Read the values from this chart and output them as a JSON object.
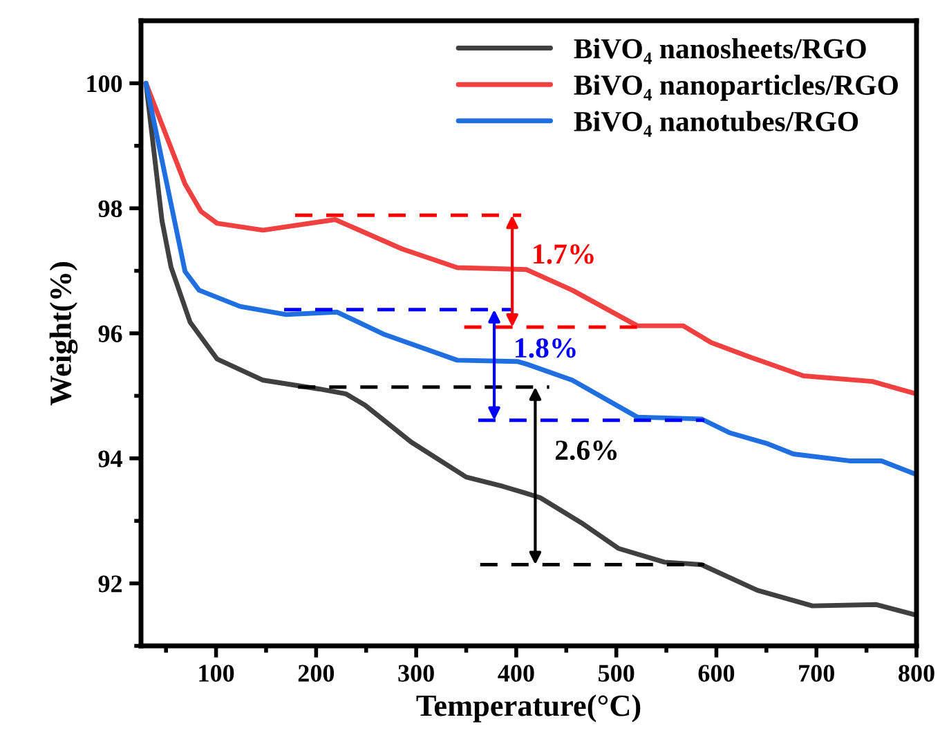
{
  "chart_data": {
    "type": "line",
    "xlabel": "Temperature(°C)",
    "ylabel": "Weight(%)",
    "xlim": [
      25,
      800
    ],
    "ylim": [
      91,
      101
    ],
    "xticks": [
      {
        "value": 50,
        "label": null
      },
      100,
      {
        "value": 150,
        "label": null
      },
      200,
      {
        "value": 250,
        "label": null
      },
      300,
      {
        "value": 350,
        "label": null
      },
      400,
      {
        "value": 450,
        "label": null
      },
      500,
      {
        "value": 550,
        "label": null
      },
      600,
      {
        "value": 650,
        "label": null
      },
      700,
      {
        "value": 750,
        "label": null
      },
      800
    ],
    "yticks": [
      {
        "value": 91,
        "label": null
      },
      92,
      {
        "value": 93,
        "label": null
      },
      94,
      {
        "value": 95,
        "label": null
      },
      96,
      {
        "value": 97,
        "label": null
      },
      98,
      {
        "value": 99,
        "label": null
      },
      100
    ],
    "grid": false,
    "legend": "top right",
    "line_style": "solid",
    "marker": "none",
    "series": [
      {
        "name": "BiVO₄ nanosheets/RGO",
        "color": "#404040",
        "x": [
          30,
          46,
          55,
          74,
          101,
          147,
          203,
          230,
          249,
          295,
          350,
          387,
          410,
          424,
          465,
          502,
          548,
          585,
          641,
          696,
          760,
          800
        ],
        "values": [
          100,
          97.8,
          97.06,
          96.18,
          95.59,
          95.25,
          95.11,
          95.03,
          94.85,
          94.26,
          93.7,
          93.55,
          93.44,
          93.37,
          92.97,
          92.56,
          92.34,
          92.3,
          91.89,
          91.64,
          91.66,
          91.49
        ]
      },
      {
        "name": "BiVO₄ nanoparticles/RGO",
        "color": "#f04040",
        "x": [
          30,
          69,
          85,
          101,
          147,
          219,
          286,
          341,
          410,
          456,
          521,
          567,
          595,
          632,
          687,
          756,
          800
        ],
        "values": [
          100,
          98.39,
          97.95,
          97.76,
          97.65,
          97.82,
          97.35,
          97.05,
          97.02,
          96.69,
          96.12,
          96.12,
          95.85,
          95.63,
          95.32,
          95.23,
          95.03
        ]
      },
      {
        "name": "BiVO₄ nanotubes/RGO",
        "color": "#1f6fe0",
        "x": [
          30,
          69,
          83,
          124,
          170,
          221,
          267,
          341,
          401,
          410,
          456,
          521,
          585,
          613,
          650,
          677,
          733,
          765,
          800
        ],
        "values": [
          100,
          96.99,
          96.69,
          96.43,
          96.3,
          96.34,
          95.99,
          95.57,
          95.55,
          95.51,
          95.25,
          94.66,
          94.63,
          94.41,
          94.24,
          94.07,
          93.96,
          93.96,
          93.74
        ]
      },
      {
        "color": "#ff0000",
        "line_style": "dashed",
        "x": [
          179,
          405
        ],
        "values": [
          97.89,
          97.89
        ]
      },
      {
        "color": "#ff0000",
        "line_style": "dashed",
        "x": [
          348,
          525
        ],
        "values": [
          96.1,
          96.1
        ]
      },
      {
        "color": "#0000ff",
        "line_style": "dashed",
        "x": [
          168,
          396
        ],
        "values": [
          96.38,
          96.38
        ]
      },
      {
        "color": "#0000ff",
        "line_style": "dashed",
        "x": [
          362,
          588
        ],
        "values": [
          94.61,
          94.61
        ]
      },
      {
        "color": "#000000",
        "line_style": "dashed",
        "x": [
          182,
          433
        ],
        "values": [
          95.14,
          95.14
        ]
      },
      {
        "color": "#000000",
        "line_style": "dashed",
        "x": [
          364,
          588
        ],
        "values": [
          92.3,
          92.3
        ]
      }
    ],
    "annotations": [
      {
        "text": "1.7%",
        "x": 396,
        "y": 97.89
      },
      {
        "text": "1.8%",
        "x": 378,
        "y": 96.38
      },
      {
        "text": "2.6%",
        "x": 419,
        "y": 95.14
      }
    ]
  }
}
